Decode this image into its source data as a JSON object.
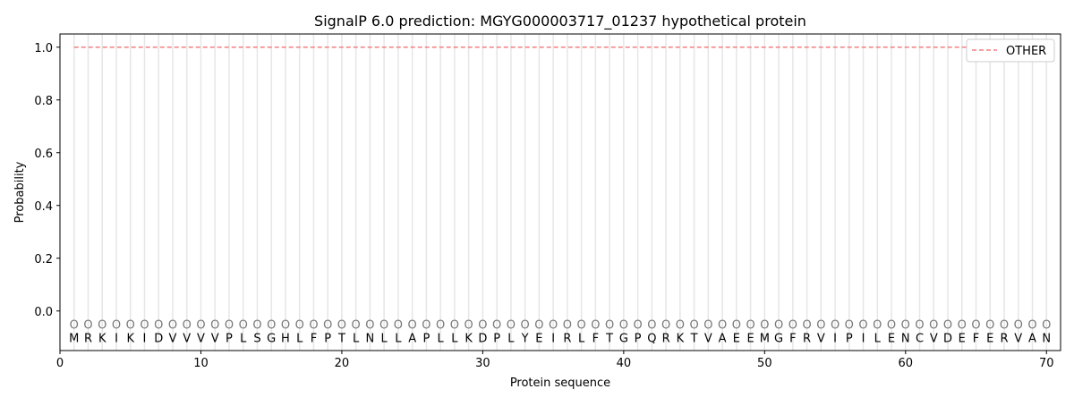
{
  "chart_data": {
    "type": "line",
    "title": "SignalP 6.0 prediction: MGYG000003717_01237 hypothetical protein",
    "xlabel": "Protein sequence",
    "ylabel": "Probability",
    "xlim": [
      0,
      71
    ],
    "ylim": [
      -0.15,
      1.05
    ],
    "xticks": [
      0,
      10,
      20,
      30,
      40,
      50,
      60,
      70
    ],
    "yticks": [
      0.0,
      0.2,
      0.4,
      0.6,
      0.8,
      1.0
    ],
    "ytick_labels": [
      "0.0",
      "0.2",
      "0.4",
      "0.6",
      "0.8",
      "1.0"
    ],
    "grid": "vertical lines at each residue",
    "legend": "top-right",
    "sequence": [
      "M",
      "R",
      "K",
      "I",
      "K",
      "I",
      "D",
      "V",
      "V",
      "V",
      "V",
      "P",
      "L",
      "S",
      "G",
      "H",
      "L",
      "F",
      "P",
      "T",
      "L",
      "N",
      "L",
      "L",
      "A",
      "P",
      "L",
      "L",
      "K",
      "D",
      "P",
      "L",
      "Y",
      "E",
      "I",
      "R",
      "L",
      "F",
      "T",
      "G",
      "P",
      "Q",
      "R",
      "K",
      "T",
      "V",
      "A",
      "E",
      "E",
      "M",
      "G",
      "F",
      "R",
      "V",
      "I",
      "P",
      "I",
      "L",
      "E",
      "N",
      "C",
      "V",
      "D",
      "E",
      "F",
      "E",
      "R",
      "V",
      "A",
      "N"
    ],
    "region_label": "O",
    "series": [
      {
        "name": "OTHER",
        "color": "#f08080",
        "style": "dashed",
        "x_range": [
          1,
          70
        ],
        "value": 1.0
      }
    ]
  }
}
